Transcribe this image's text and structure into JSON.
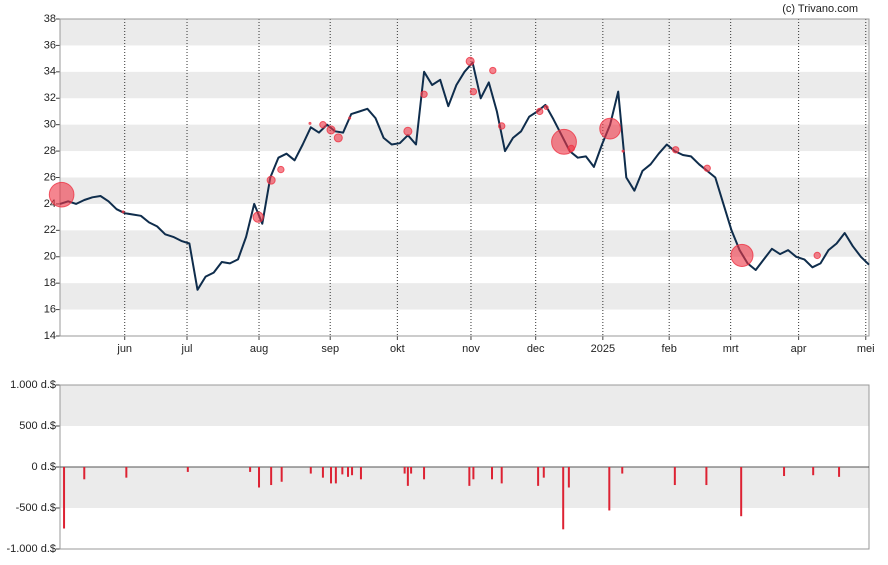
{
  "source": "(c) Trivano.com",
  "chart_data": [
    {
      "type": "line",
      "color": "#0f2d4c",
      "values": [
        24.0,
        24.2,
        24.0,
        24.3,
        24.5,
        24.6,
        24.2,
        23.6,
        23.3,
        23.2,
        23.1,
        22.6,
        22.3,
        21.7,
        21.5,
        21.2,
        21.0,
        17.5,
        18.5,
        18.8,
        19.6,
        19.5,
        19.8,
        21.5,
        24.0,
        22.5,
        26.0,
        27.5,
        27.8,
        27.3,
        28.5,
        29.8,
        29.4,
        30.0,
        29.5,
        29.4,
        30.8,
        31.0,
        31.2,
        30.5,
        29.0,
        28.5,
        28.6,
        29.2,
        28.5,
        34.0,
        33.0,
        33.4,
        31.4,
        33.0,
        34.0,
        34.7,
        32.0,
        33.2,
        31.0,
        28.0,
        29.0,
        29.5,
        30.6,
        31.0,
        31.5,
        30.4,
        29.2,
        28.0,
        27.5,
        27.6,
        26.8,
        28.5,
        30.0,
        32.5,
        26.0,
        25.0,
        26.5,
        27.0,
        27.8,
        28.5,
        28.0,
        27.7,
        27.6,
        27.0,
        26.5,
        26.0,
        24.0,
        22.0,
        20.5,
        19.5,
        19.0,
        19.8,
        20.6,
        20.2,
        20.5,
        20.0,
        19.8,
        19.2,
        19.5,
        20.5,
        21.0,
        21.8,
        20.8,
        20.0,
        19.4
      ],
      "bubbles": {
        "color": "#ee3344",
        "x": [
          0.2,
          7.8,
          24.5,
          26.1,
          27.3,
          30.9,
          32.5,
          33.5,
          34.4,
          35.8,
          43.0,
          45.0,
          50.7,
          51.1,
          53.5,
          54.6,
          59.3,
          60.1,
          62.3,
          63.2,
          68.0,
          69.6,
          76.1,
          80.0,
          84.3,
          93.6
        ],
        "values": [
          24.7,
          23.4,
          23.0,
          25.8,
          26.6,
          30.1,
          30.0,
          29.6,
          29.0,
          30.5,
          29.5,
          32.3,
          34.8,
          32.5,
          34.1,
          29.9,
          31.0,
          31.3,
          28.7,
          28.2,
          29.7,
          28.0,
          28.1,
          26.7,
          20.1,
          20.1
        ],
        "sizes": [
          750,
          5,
          130,
          80,
          50,
          5,
          50,
          80,
          80,
          5,
          80,
          50,
          80,
          50,
          50,
          50,
          50,
          20,
          760,
          50,
          530,
          5,
          50,
          50,
          600,
          50
        ]
      },
      "xlim": [
        0,
        100
      ],
      "xticks": [
        {
          "value": 8.0,
          "label": "jun"
        },
        {
          "value": 15.7,
          "label": "jul"
        },
        {
          "value": 24.6,
          "label": "aug"
        },
        {
          "value": 33.4,
          "label": "sep"
        },
        {
          "value": 41.7,
          "label": "okt"
        },
        {
          "value": 50.8,
          "label": "nov"
        },
        {
          "value": 58.8,
          "label": "dec"
        },
        {
          "value": 67.1,
          "label": "2025"
        },
        {
          "value": 75.3,
          "label": "feb"
        },
        {
          "value": 82.9,
          "label": "mrt"
        },
        {
          "value": 91.3,
          "label": "apr"
        },
        {
          "value": 99.6,
          "label": "mei"
        }
      ],
      "ylim": [
        14,
        38
      ],
      "yticks": [
        14,
        16,
        18,
        20,
        22,
        24,
        26,
        28,
        30,
        32,
        34,
        36,
        38
      ],
      "grid": true
    },
    {
      "type": "bar",
      "color": "#dd2233",
      "x": [
        0.5,
        3.0,
        8.2,
        15.8,
        23.5,
        24.6,
        26.1,
        27.4,
        31.0,
        32.5,
        33.5,
        34.1,
        34.9,
        35.6,
        36.1,
        37.2,
        42.6,
        43.0,
        43.4,
        45.0,
        50.6,
        51.1,
        53.4,
        54.6,
        59.1,
        59.8,
        62.2,
        62.9,
        67.9,
        69.5,
        76.0,
        79.9,
        84.2,
        89.5,
        93.1,
        96.3
      ],
      "values": [
        -750,
        -150,
        -130,
        -60,
        -60,
        -250,
        -220,
        -180,
        -80,
        -130,
        -200,
        -200,
        -90,
        -120,
        -100,
        -150,
        -80,
        -230,
        -80,
        -150,
        -230,
        -150,
        -150,
        -200,
        -230,
        -130,
        -760,
        -250,
        -530,
        -80,
        -220,
        -220,
        -600,
        -110,
        -100,
        -120
      ],
      "xlim": [
        0,
        100
      ],
      "ylim": [
        -1000,
        1000
      ],
      "yticks": [
        {
          "value": -1000,
          "label": "-1.000 d.$"
        },
        {
          "value": -500,
          "label": "-500 d.$"
        },
        {
          "value": 0,
          "label": "0 d.$"
        },
        {
          "value": 500,
          "label": "500 d.$"
        },
        {
          "value": 1000,
          "label": "1.000 d.$"
        }
      ]
    }
  ]
}
